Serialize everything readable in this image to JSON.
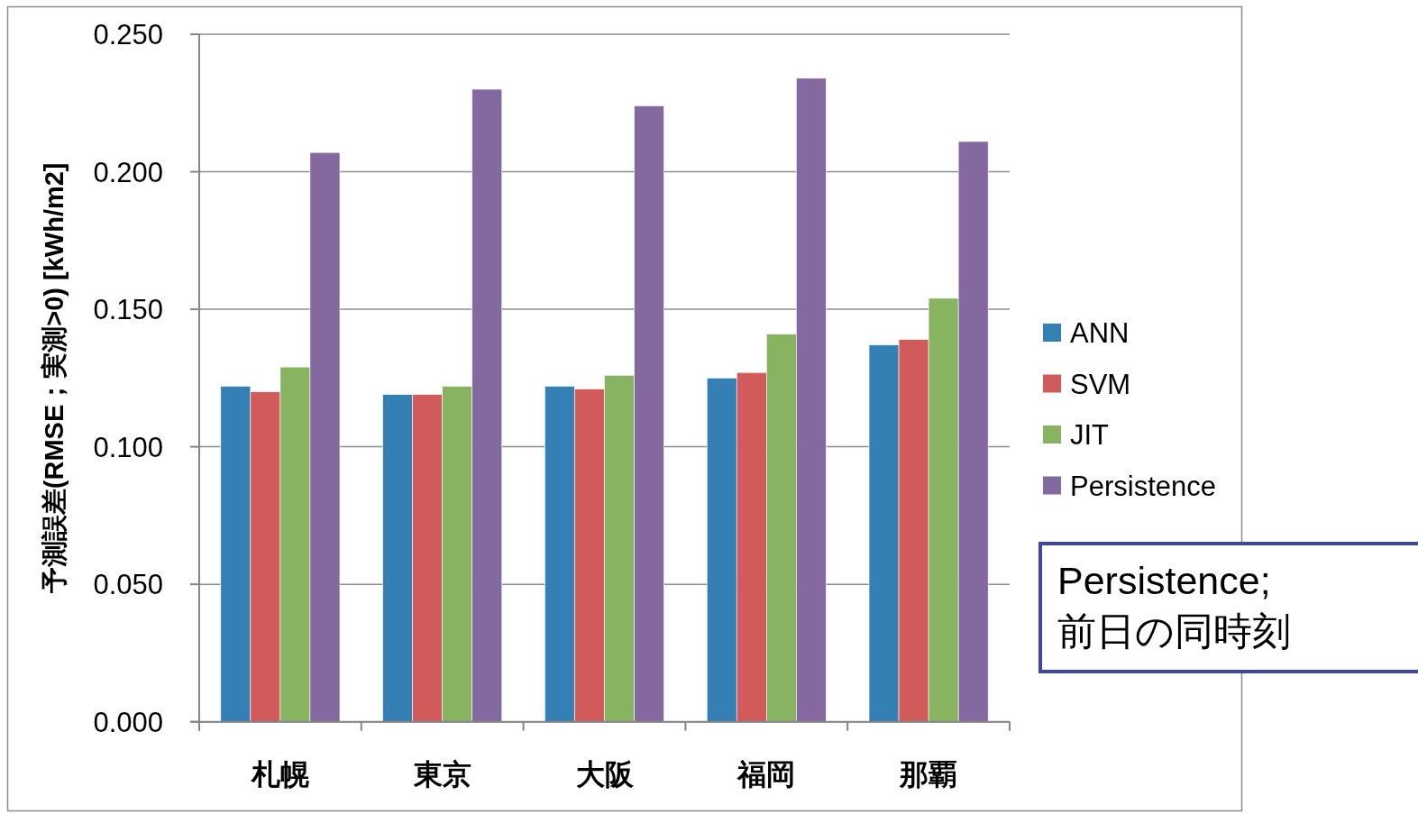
{
  "chart_data": {
    "type": "bar",
    "ylabel": "予測誤差(RMSE；実測>0) [kWh/m2]",
    "categories": [
      "札幌",
      "東京",
      "大阪",
      "福岡",
      "那覇"
    ],
    "series": [
      {
        "name": "ANN",
        "color": "#3480b5",
        "values": [
          0.122,
          0.119,
          0.122,
          0.125,
          0.137
        ]
      },
      {
        "name": "SVM",
        "color": "#d15a5b",
        "values": [
          0.12,
          0.119,
          0.121,
          0.127,
          0.139
        ]
      },
      {
        "name": "JIT",
        "color": "#88b360",
        "values": [
          0.129,
          0.122,
          0.126,
          0.141,
          0.154
        ]
      },
      {
        "name": "Persistence",
        "color": "#8468a0",
        "values": [
          0.207,
          0.23,
          0.224,
          0.234,
          0.211
        ]
      }
    ],
    "ylim": [
      0,
      0.25
    ],
    "yticks": [
      {
        "value": 0,
        "label": "0.000"
      },
      {
        "value": 0.05,
        "label": "0.050"
      },
      {
        "value": 0.1,
        "label": "0.100"
      },
      {
        "value": 0.15,
        "label": "0.150"
      },
      {
        "value": 0.2,
        "label": "0.200"
      },
      {
        "value": 0.25,
        "label": "0.250"
      }
    ],
    "grid": "y",
    "legend": "right",
    "annotations": [
      "Persistence;\n前日の同時刻"
    ]
  }
}
